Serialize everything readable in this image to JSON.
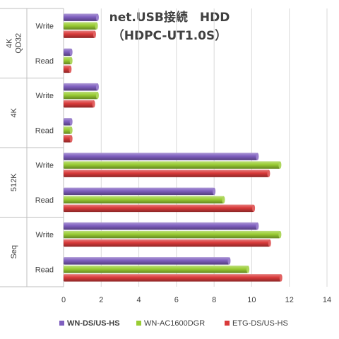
{
  "chart_data": {
    "type": "bar",
    "orientation": "horizontal",
    "title": "net.USB接続　HDD",
    "subtitle": "（HDPC-UT1.0S）",
    "groups": [
      {
        "label": "4K\nQD32",
        "categories": [
          "Write",
          "Read"
        ]
      },
      {
        "label": "4K",
        "categories": [
          "Write",
          "Read"
        ]
      },
      {
        "label": "512K",
        "categories": [
          "Write",
          "Read"
        ]
      },
      {
        "label": "Seq",
        "categories": [
          "Write",
          "Read"
        ]
      }
    ],
    "series": [
      {
        "name": "WN-DS/US-HS",
        "color": "#7f5fbf",
        "values": [
          1.8,
          0.4,
          1.8,
          0.4,
          10.3,
          8.0,
          10.3,
          8.8
        ]
      },
      {
        "name": "WN-AC1600DGR",
        "color": "#99cc33",
        "values": [
          1.75,
          0.4,
          1.8,
          0.4,
          11.5,
          8.5,
          11.5,
          9.8
        ]
      },
      {
        "name": "ETG-DS/US-HS",
        "color": "#d93a3a",
        "values": [
          1.65,
          0.35,
          1.6,
          0.4,
          10.9,
          10.1,
          10.95,
          11.55
        ]
      }
    ],
    "xlim": [
      0,
      14
    ],
    "xticks": [
      "0",
      "2",
      "4",
      "6",
      "8",
      "10",
      "12",
      "14"
    ],
    "grid": true,
    "legend": "bottom",
    "legend_bold_series": 0
  }
}
